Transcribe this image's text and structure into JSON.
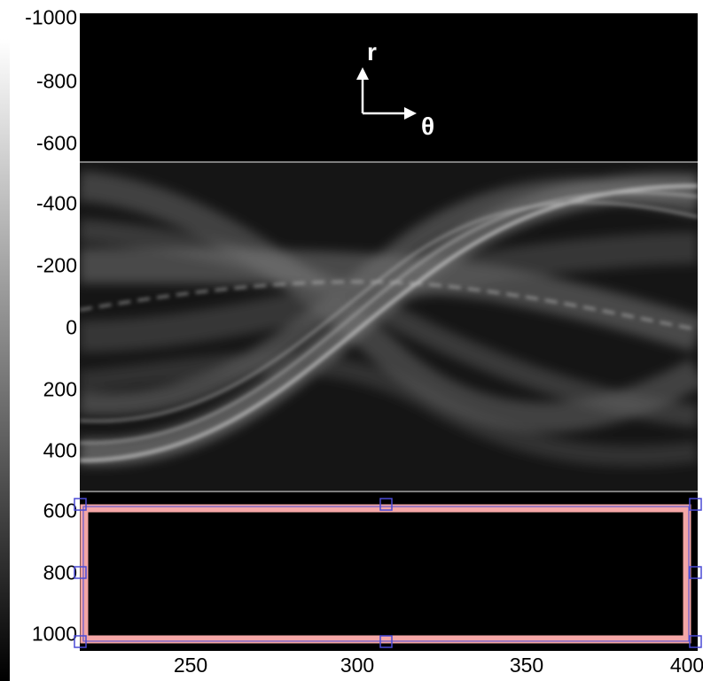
{
  "y_ticks": [
    "-1000",
    "-800",
    "-600",
    "-400",
    "-200",
    "0",
    "200",
    "400",
    "600",
    "800",
    "1000"
  ],
  "x_ticks": [
    "250",
    "300",
    "350",
    "400"
  ],
  "annotation": {
    "r_label": "r",
    "theta_label": "θ"
  },
  "colors": {
    "selection_border": "#f4a6a6",
    "handle": "#4a4ad6",
    "background": "#000000"
  },
  "icons": {
    "arrows": "axis-arrows-icon"
  }
}
